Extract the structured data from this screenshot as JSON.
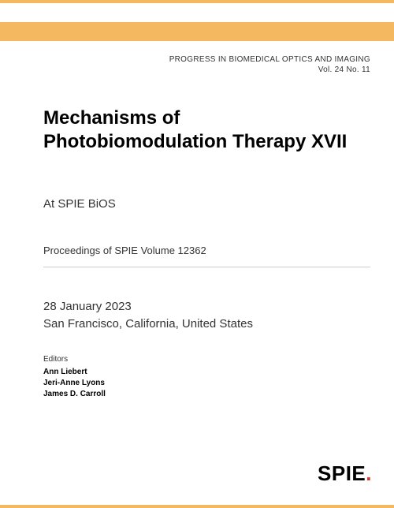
{
  "colors": {
    "accent": "#f4b860",
    "dot": "#d9342b",
    "text": "#333333",
    "title": "#000000",
    "rule": "#cccccc",
    "background": "#ffffff"
  },
  "series": {
    "title": "PROGRESS IN BIOMEDICAL OPTICS AND IMAGING",
    "volume_line": "Vol. 24 No. 11"
  },
  "title": "Mechanisms of Photobiomodulation Therapy XVII",
  "subtitle": "At SPIE BiOS",
  "proceedings": "Proceedings of SPIE Volume 12362",
  "date": "28 January 2023",
  "location": "San Francisco, California, United States",
  "editors": {
    "heading": "Editors",
    "names": [
      "Ann Liebert",
      "Jeri-Anne Lyons",
      "James D. Carroll"
    ]
  },
  "logo": {
    "text": "SPIE",
    "dot": "."
  }
}
